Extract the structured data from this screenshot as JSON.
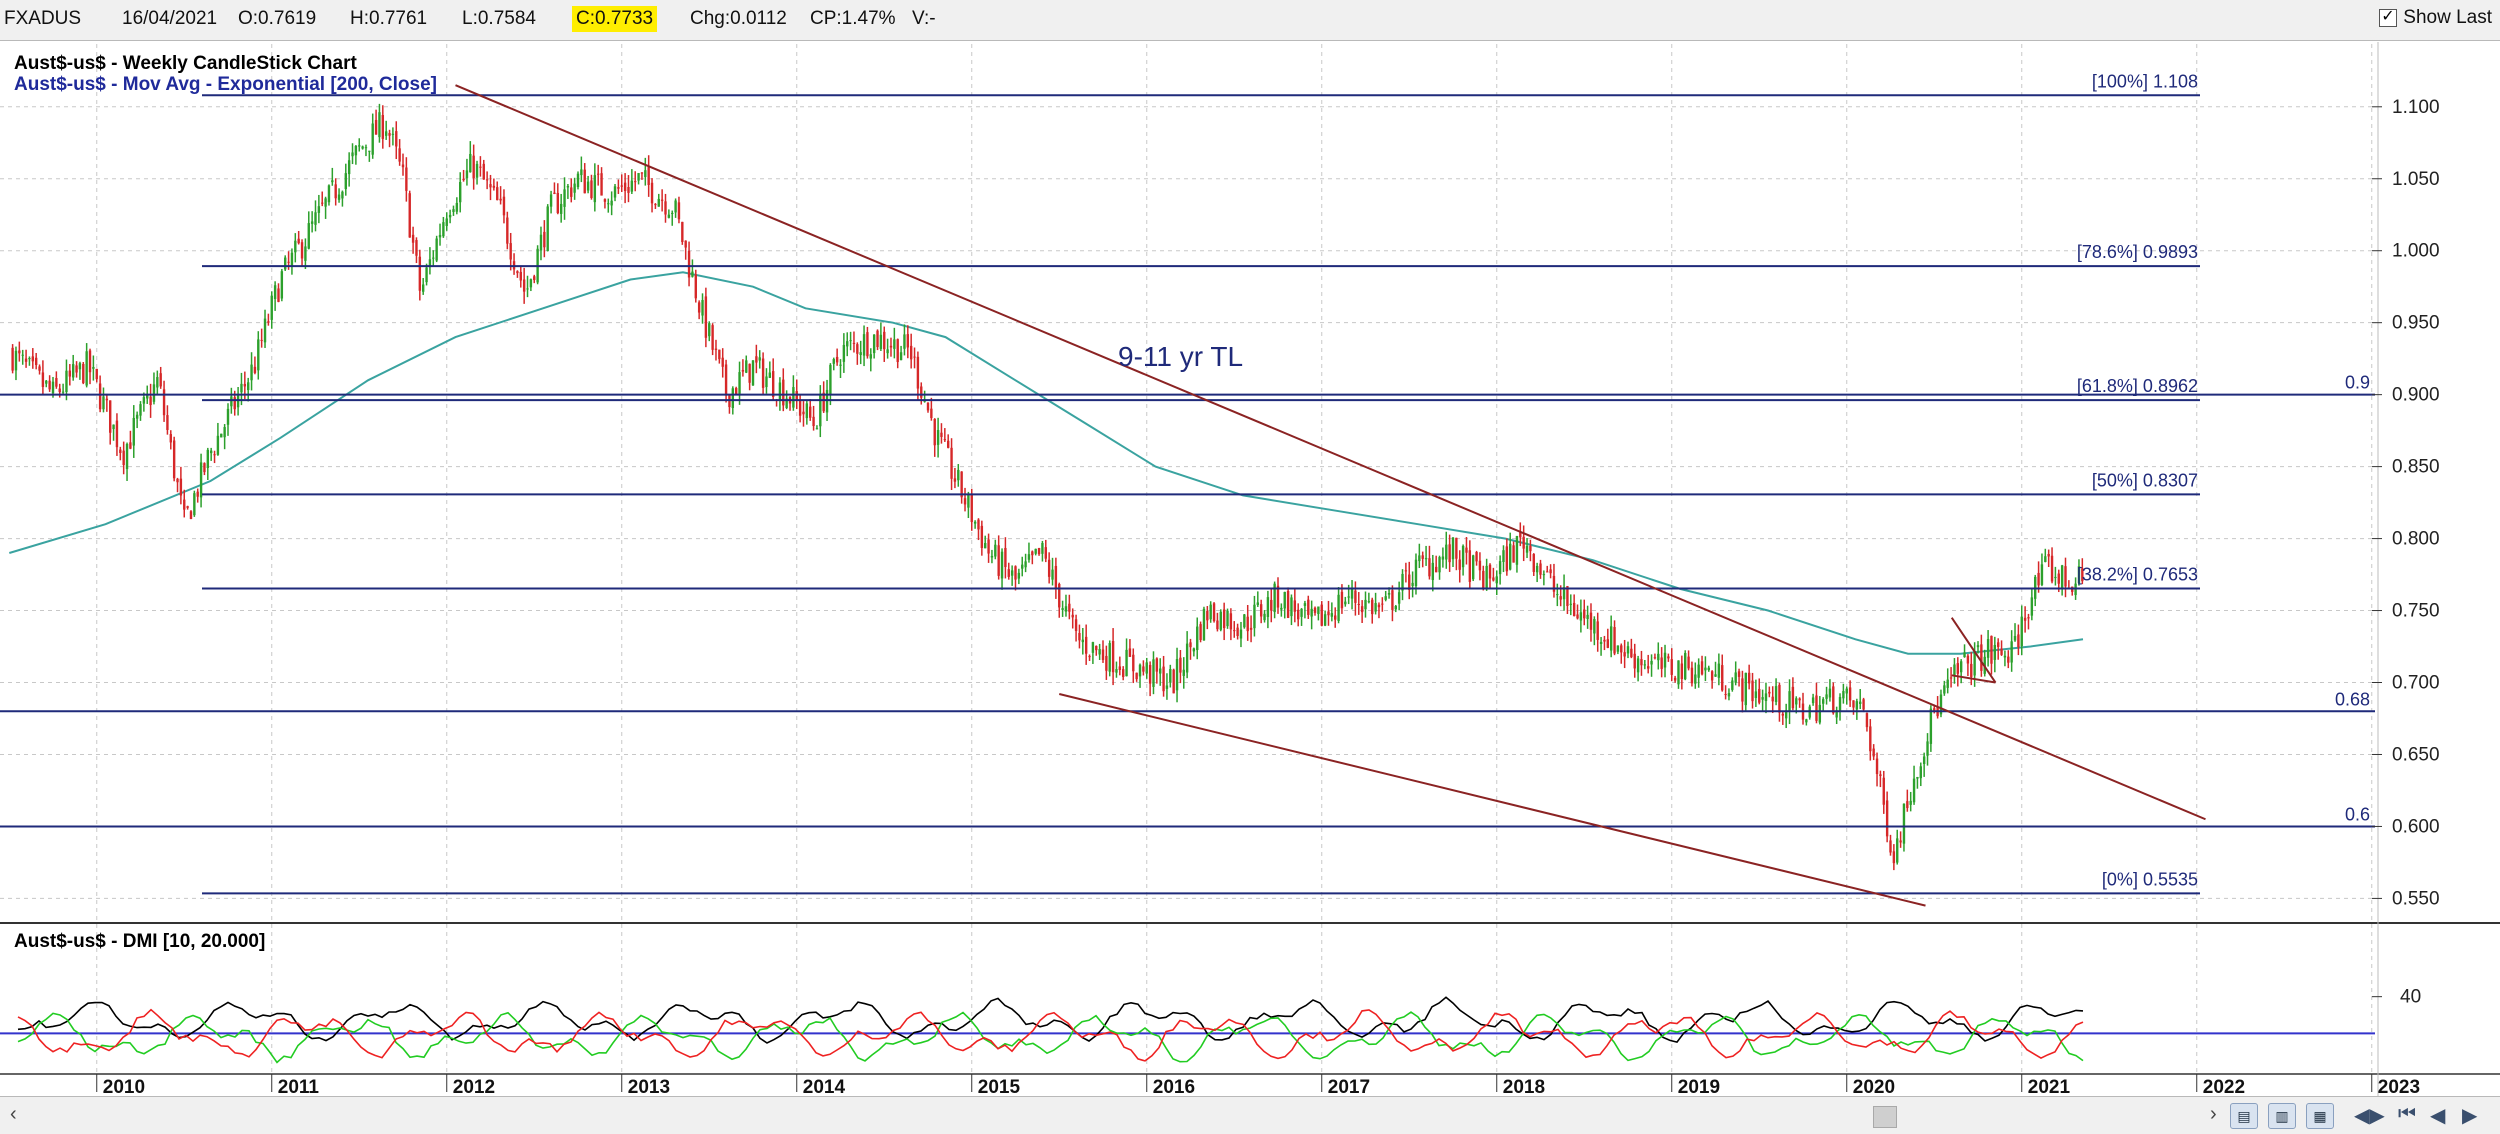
{
  "info_bar": {
    "symbol": "FXADUS",
    "date": "16/04/2021",
    "open": "O:0.7619",
    "high": "H:0.7761",
    "low": "L:0.7584",
    "close": "C:0.7733",
    "change": "Chg:0.0112",
    "change_pct": "CP:1.47%",
    "volume": "V:-",
    "show_last_label": "Show Last",
    "show_last_checked": true
  },
  "colors": {
    "background": "#ffffff",
    "grid": "#c8c8c8",
    "up_candle": "#2ca02c",
    "down_candle": "#d62728",
    "ema": "#3aa3a0",
    "fib_line": "#1f2a7a",
    "trendline": "#8b2323",
    "dmi_adx": "#000000",
    "dmi_plus": "#22cc22",
    "dmi_minus": "#ee2222",
    "dmi_level": "#3333cc",
    "highlight": "#ffee00"
  },
  "chart_data": [
    {
      "type": "candlestick",
      "title": "Aust$-us$ - Weekly CandleStick Chart",
      "subtitle": "Aust$-us$ - Mov Avg - Exponential [200, Close]",
      "ylim": [
        0.535,
        1.12
      ],
      "yticks": [
        "1.100",
        "1.050",
        "1.000",
        "0.950",
        "0.900",
        "0.850",
        "0.800",
        "0.750",
        "0.700",
        "0.650",
        "0.600",
        "0.550"
      ],
      "xlim": [
        2009.45,
        2023.25
      ],
      "grid": true,
      "price_path": [
        [
          2009.45,
          0.93
        ],
        [
          2009.7,
          0.9
        ],
        [
          2009.9,
          0.92
        ],
        [
          2010.1,
          0.86
        ],
        [
          2010.3,
          0.91
        ],
        [
          2010.45,
          0.81
        ],
        [
          2010.6,
          0.86
        ],
        [
          2010.85,
          0.92
        ],
        [
          2011.0,
          0.98
        ],
        [
          2011.15,
          1.01
        ],
        [
          2011.3,
          1.04
        ],
        [
          2011.45,
          1.07
        ],
        [
          2011.6,
          1.09
        ],
        [
          2011.7,
          1.05
        ],
        [
          2011.8,
          0.97
        ],
        [
          2011.95,
          1.03
        ],
        [
          2012.1,
          1.06
        ],
        [
          2012.25,
          1.03
        ],
        [
          2012.4,
          0.97
        ],
        [
          2012.55,
          1.03
        ],
        [
          2012.7,
          1.05
        ],
        [
          2012.9,
          1.04
        ],
        [
          2013.05,
          1.05
        ],
        [
          2013.25,
          1.03
        ],
        [
          2013.4,
          0.96
        ],
        [
          2013.55,
          0.9
        ],
        [
          2013.7,
          0.92
        ],
        [
          2013.9,
          0.9
        ],
        [
          2014.05,
          0.88
        ],
        [
          2014.2,
          0.93
        ],
        [
          2014.4,
          0.94
        ],
        [
          2014.6,
          0.93
        ],
        [
          2014.75,
          0.87
        ],
        [
          2014.9,
          0.83
        ],
        [
          2015.05,
          0.79
        ],
        [
          2015.2,
          0.77
        ],
        [
          2015.35,
          0.79
        ],
        [
          2015.55,
          0.73
        ],
        [
          2015.7,
          0.72
        ],
        [
          2015.9,
          0.71
        ],
        [
          2016.1,
          0.7
        ],
        [
          2016.3,
          0.75
        ],
        [
          2016.5,
          0.74
        ],
        [
          2016.7,
          0.76
        ],
        [
          2016.9,
          0.74
        ],
        [
          2017.1,
          0.76
        ],
        [
          2017.3,
          0.75
        ],
        [
          2017.5,
          0.78
        ],
        [
          2017.7,
          0.79
        ],
        [
          2017.9,
          0.77
        ],
        [
          2018.1,
          0.8
        ],
        [
          2018.3,
          0.76
        ],
        [
          2018.5,
          0.74
        ],
        [
          2018.7,
          0.72
        ],
        [
          2018.9,
          0.71
        ],
        [
          2019.1,
          0.71
        ],
        [
          2019.3,
          0.7
        ],
        [
          2019.5,
          0.69
        ],
        [
          2019.7,
          0.68
        ],
        [
          2019.9,
          0.69
        ],
        [
          2020.05,
          0.68
        ],
        [
          2020.15,
          0.62
        ],
        [
          2020.22,
          0.58
        ],
        [
          2020.32,
          0.63
        ],
        [
          2020.45,
          0.68
        ],
        [
          2020.6,
          0.71
        ],
        [
          2020.75,
          0.72
        ],
        [
          2020.9,
          0.72
        ],
        [
          2021.0,
          0.76
        ],
        [
          2021.1,
          0.78
        ],
        [
          2021.2,
          0.77
        ],
        [
          2021.3,
          0.77
        ]
      ],
      "ema_200": [
        [
          2009.45,
          0.79
        ],
        [
          2010.0,
          0.81
        ],
        [
          2010.6,
          0.84
        ],
        [
          2011.0,
          0.87
        ],
        [
          2011.5,
          0.91
        ],
        [
          2012.0,
          0.94
        ],
        [
          2012.5,
          0.96
        ],
        [
          2013.0,
          0.98
        ],
        [
          2013.3,
          0.985
        ],
        [
          2013.7,
          0.975
        ],
        [
          2014.0,
          0.96
        ],
        [
          2014.5,
          0.95
        ],
        [
          2014.8,
          0.94
        ],
        [
          2015.2,
          0.91
        ],
        [
          2015.6,
          0.88
        ],
        [
          2016.0,
          0.85
        ],
        [
          2016.5,
          0.83
        ],
        [
          2017.0,
          0.82
        ],
        [
          2017.5,
          0.81
        ],
        [
          2018.0,
          0.8
        ],
        [
          2018.5,
          0.785
        ],
        [
          2019.0,
          0.765
        ],
        [
          2019.5,
          0.75
        ],
        [
          2020.0,
          0.73
        ],
        [
          2020.3,
          0.72
        ],
        [
          2020.6,
          0.72
        ],
        [
          2021.0,
          0.725
        ],
        [
          2021.3,
          0.73
        ]
      ],
      "fib_levels": [
        {
          "label": "[100%] 1.108",
          "value": 1.108
        },
        {
          "label": "[78.6%] 0.9893",
          "value": 0.9893
        },
        {
          "label": "[61.8%] 0.8962",
          "value": 0.8962
        },
        {
          "label": "[50%] 0.8307",
          "value": 0.8307
        },
        {
          "label": "[38.2%] 0.7653",
          "value": 0.7653
        },
        {
          "label": "[0%] 0.5535",
          "value": 0.5535
        }
      ],
      "horizontal_levels": [
        {
          "label": "0.9",
          "value": 0.9
        },
        {
          "label": "0.68",
          "value": 0.68
        },
        {
          "label": "0.6",
          "value": 0.6
        }
      ],
      "trendlines": [
        {
          "name": "upper",
          "from": [
            2012.0,
            1.115
          ],
          "to": [
            2022.0,
            0.605
          ]
        },
        {
          "name": "lower",
          "from": [
            2015.45,
            0.692
          ],
          "to": [
            2020.4,
            0.545
          ]
        },
        {
          "name": "pennant-top",
          "from": [
            2020.55,
            0.745
          ],
          "to": [
            2020.8,
            0.7
          ]
        },
        {
          "name": "pennant-bottom",
          "from": [
            2020.55,
            0.705
          ],
          "to": [
            2020.8,
            0.7
          ]
        }
      ],
      "annotation": "9-11 yr TL"
    },
    {
      "type": "line",
      "title": "Aust$-us$ - DMI [10, 20.000]",
      "ylim": [
        0,
        60
      ],
      "yticks": [
        "40"
      ],
      "reference_level": 20
    }
  ],
  "x_axis": {
    "ticks": [
      "2010",
      "2011",
      "2012",
      "2013",
      "2014",
      "2015",
      "2016",
      "2017",
      "2018",
      "2019",
      "2020",
      "2021",
      "2022",
      "2023"
    ]
  }
}
